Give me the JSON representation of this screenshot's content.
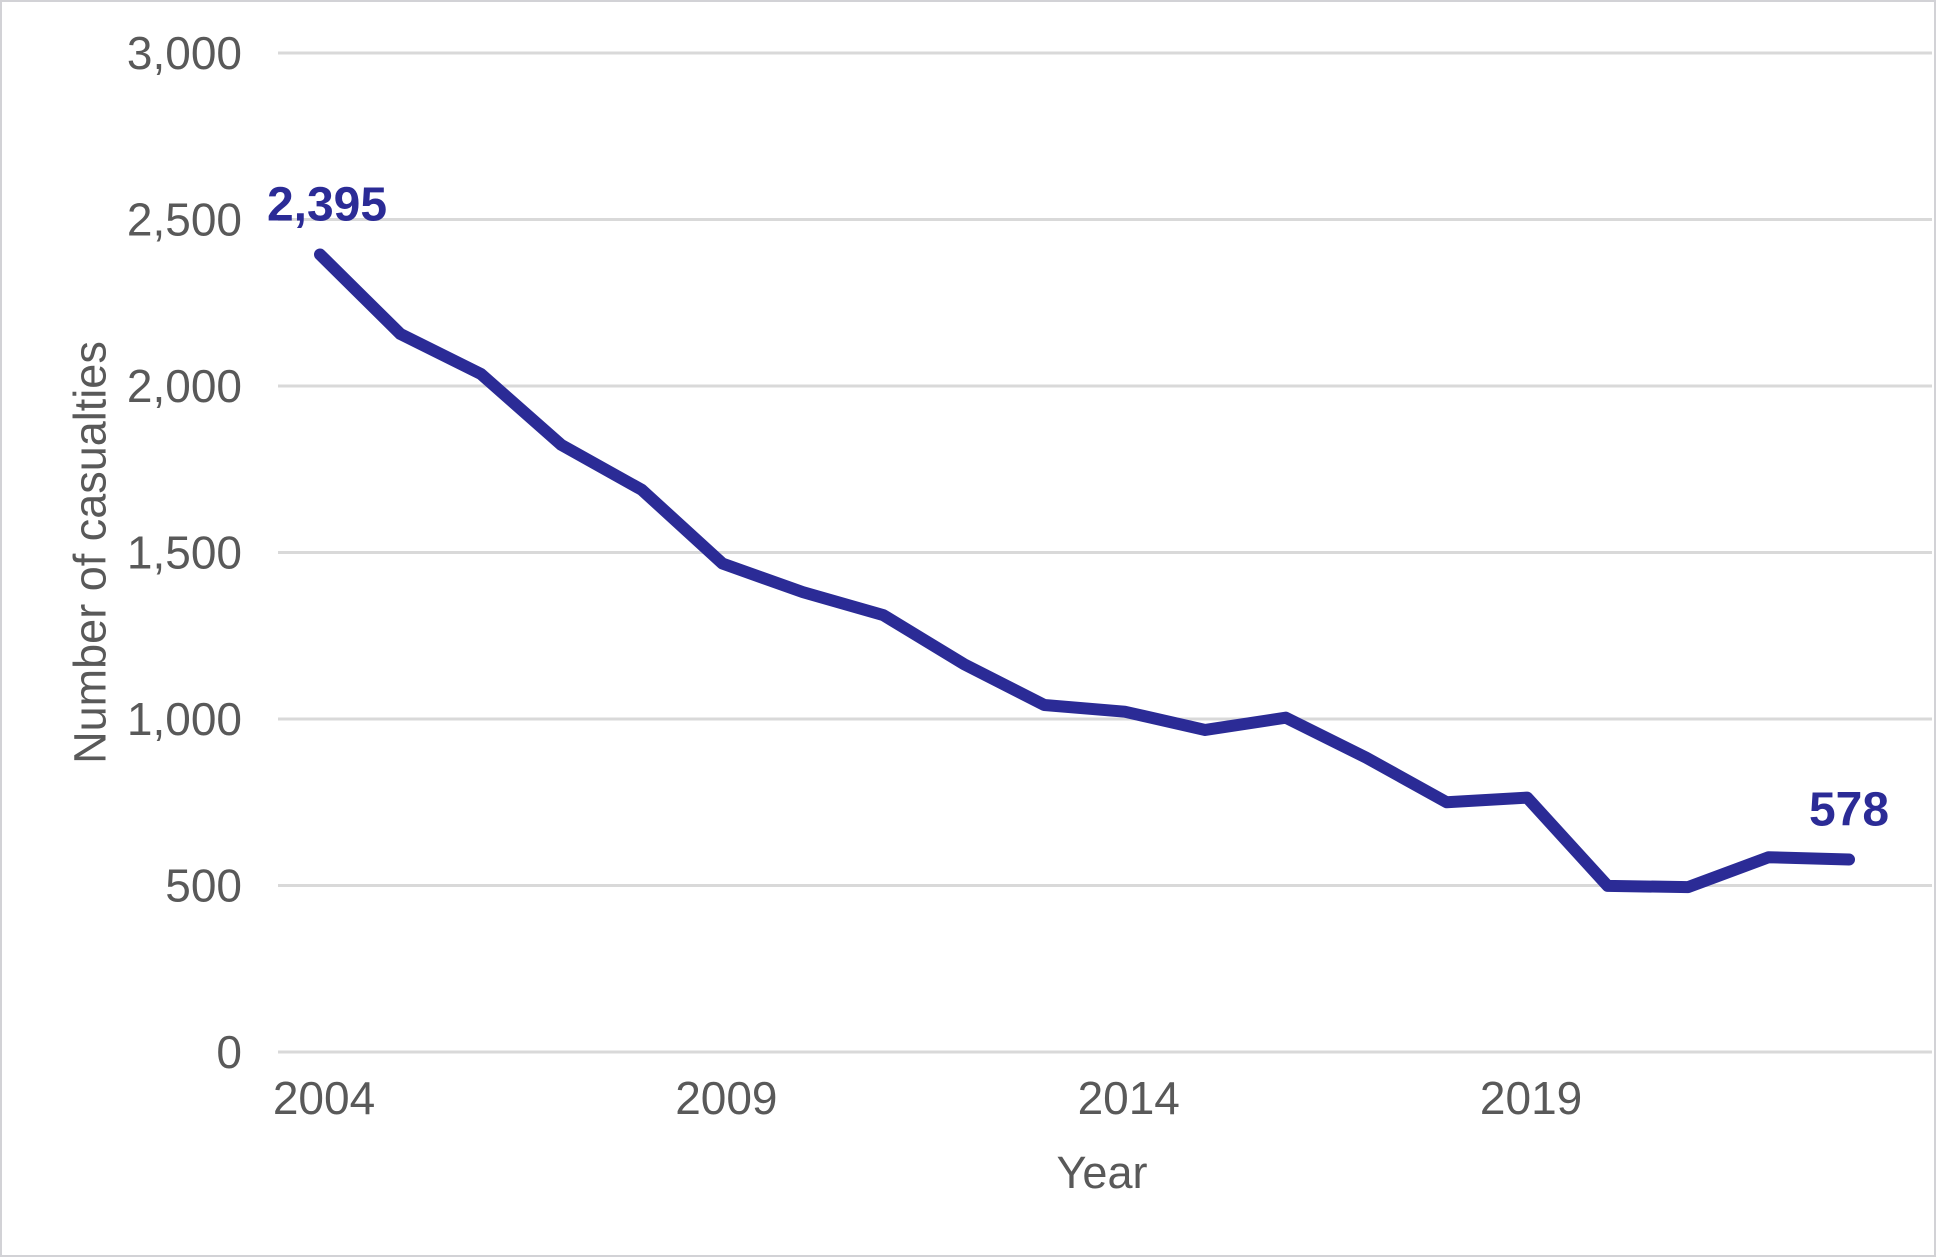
{
  "chart_data": {
    "type": "line",
    "title": "",
    "xlabel": "Year",
    "ylabel": "Number of casualties",
    "series_name": "Number of casualties",
    "x": [
      2004,
      2005,
      2006,
      2007,
      2008,
      2009,
      2010,
      2011,
      2012,
      2013,
      2014,
      2015,
      2016,
      2017,
      2018,
      2019,
      2020,
      2021,
      2022,
      2023
    ],
    "values": [
      2395,
      2156,
      2036,
      1823,
      1688,
      1467,
      1381,
      1312,
      1165,
      1042,
      1022,
      967,
      1004,
      884,
      750,
      764,
      499,
      495,
      585,
      578
    ],
    "ylim": [
      0,
      3000
    ],
    "ytick_interval": 500,
    "yticks": [
      {
        "value": 0,
        "label": "0"
      },
      {
        "value": 500,
        "label": "500"
      },
      {
        "value": 1000,
        "label": "1,000"
      },
      {
        "value": 1500,
        "label": "1,500"
      },
      {
        "value": 2000,
        "label": "2,000"
      },
      {
        "value": 2500,
        "label": "2,500"
      },
      {
        "value": 3000,
        "label": "3,000"
      }
    ],
    "xticks": [
      {
        "value": 2004,
        "label": "2004"
      },
      {
        "value": 2009,
        "label": "2009"
      },
      {
        "value": 2014,
        "label": "2014"
      },
      {
        "value": 2019,
        "label": "2019"
      }
    ],
    "annotations": [
      {
        "text": "2,395",
        "year": 2004,
        "value": 2395
      },
      {
        "text": "578",
        "year": 2023,
        "value": 578
      }
    ],
    "grid": "horizontal",
    "legend": "none",
    "colors": {
      "line": "#2b2b96",
      "data_label": "#2b2b96",
      "axis_text": "#595959",
      "gridline": "#d9d9d9",
      "background": "#ffffff"
    }
  }
}
